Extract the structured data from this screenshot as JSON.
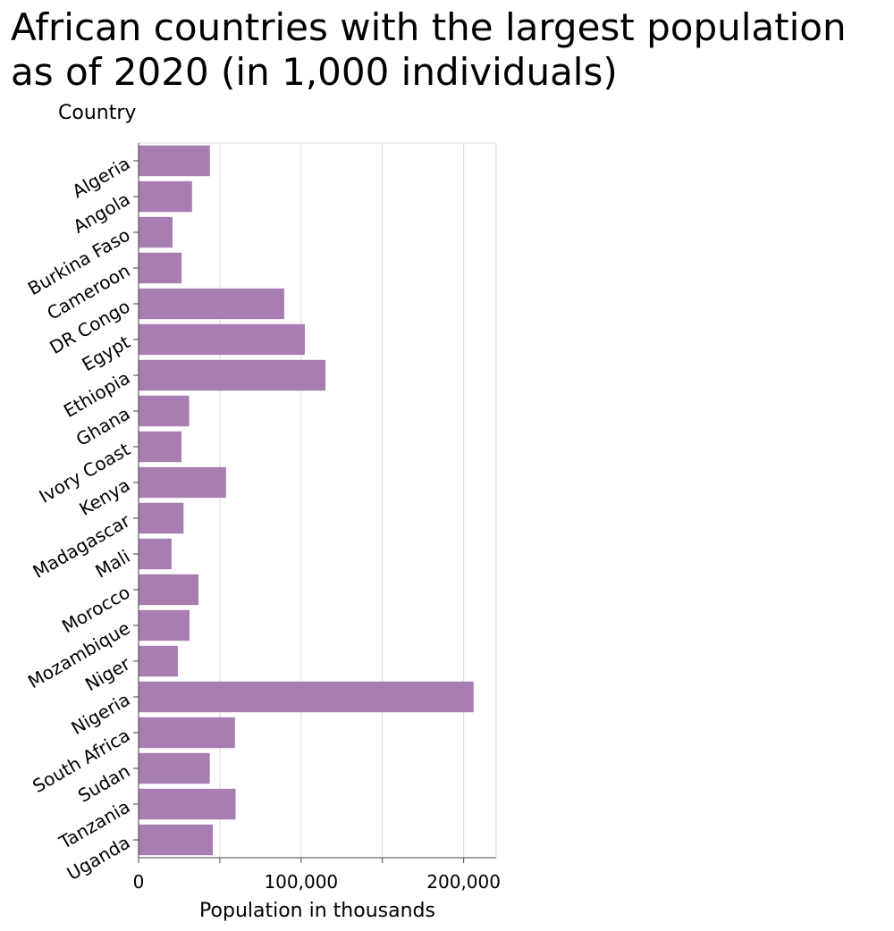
{
  "chart_data": {
    "type": "bar",
    "orientation": "horizontal",
    "title": "African countries with the largest population as of 2020 (in 1,000 individuals)",
    "xlabel": "Population in thousands",
    "ylabel": "Country",
    "xlim": [
      0,
      220000
    ],
    "xticks": [
      0,
      100000,
      200000
    ],
    "xtick_labels": [
      "0",
      "100,000",
      "200,000"
    ],
    "grid": "vertical",
    "bar_color": "#a87db1",
    "categories": [
      "Algeria",
      "Angola",
      "Burkina Faso",
      "Cameroon",
      "DR Congo",
      "Egypt",
      "Ethiopia",
      "Ghana",
      "Ivory Coast",
      "Kenya",
      "Madagascar",
      "Mali",
      "Morocco",
      "Mozambique",
      "Niger",
      "Nigeria",
      "South Africa",
      "Sudan",
      "Tanzania",
      "Uganda"
    ],
    "values": [
      43900,
      32900,
      20900,
      26500,
      89600,
      102300,
      115000,
      31100,
      26400,
      53800,
      27700,
      20300,
      36900,
      31300,
      24200,
      206100,
      59300,
      43800,
      59700,
      45700
    ]
  }
}
